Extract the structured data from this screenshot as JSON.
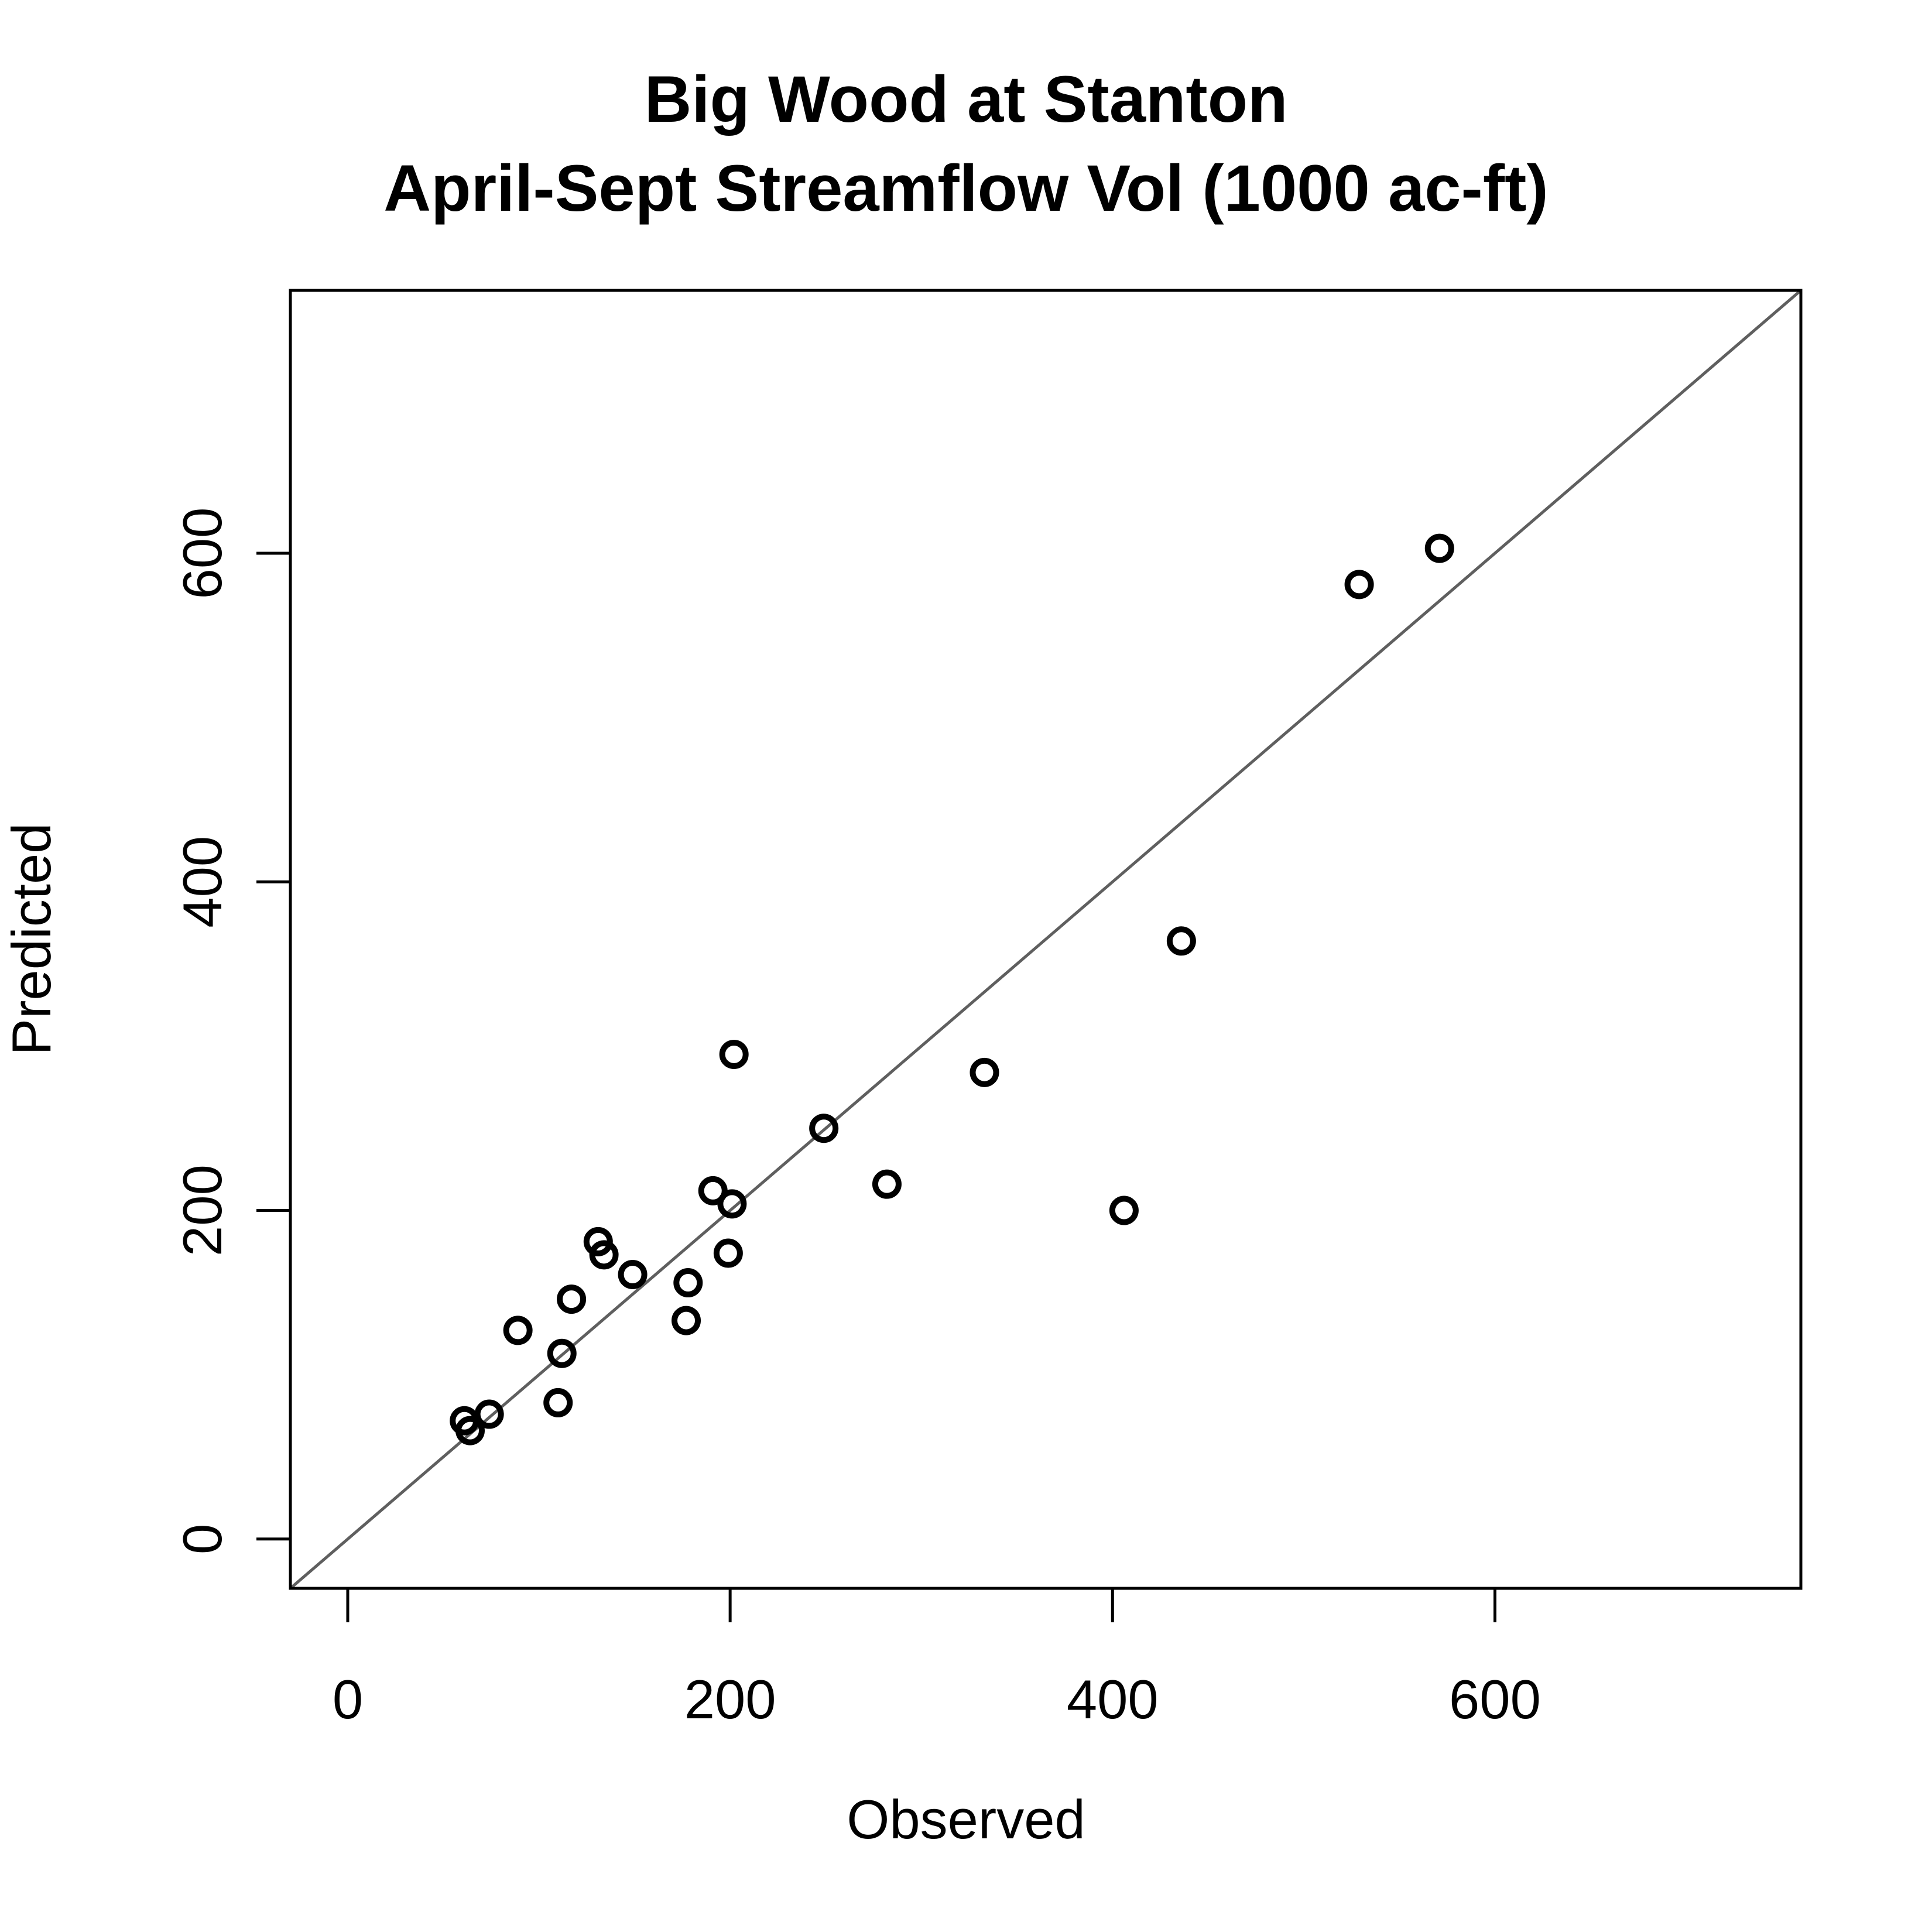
{
  "chart_data": {
    "type": "scatter",
    "title": "Big Wood at Stanton",
    "subtitle": "April-Sept Streamflow Vol (1000 ac-ft)",
    "xlabel": "Observed",
    "ylabel": "Predicted",
    "xlim": [
      -30,
      760
    ],
    "ylim": [
      -30,
      760
    ],
    "x_ticks": [
      0,
      200,
      400,
      600
    ],
    "y_ticks": [
      0,
      200,
      400,
      600
    ],
    "x_tick_labels": [
      "0",
      "200",
      "400",
      "600"
    ],
    "y_tick_labels": [
      "0",
      "200",
      "400",
      "600"
    ],
    "reference_line": {
      "type": "1:1 line",
      "color": "#5f5f5f"
    },
    "grid": false,
    "marker": "open-circle",
    "points": [
      {
        "x": 61,
        "y": 72
      },
      {
        "x": 64,
        "y": 66
      },
      {
        "x": 74,
        "y": 76
      },
      {
        "x": 89,
        "y": 127
      },
      {
        "x": 110,
        "y": 83
      },
      {
        "x": 112,
        "y": 113
      },
      {
        "x": 117,
        "y": 146
      },
      {
        "x": 131,
        "y": 181
      },
      {
        "x": 134,
        "y": 173
      },
      {
        "x": 149,
        "y": 161
      },
      {
        "x": 177,
        "y": 133
      },
      {
        "x": 178,
        "y": 156
      },
      {
        "x": 191,
        "y": 212
      },
      {
        "x": 199,
        "y": 174
      },
      {
        "x": 201,
        "y": 204
      },
      {
        "x": 202,
        "y": 295
      },
      {
        "x": 249,
        "y": 250
      },
      {
        "x": 282,
        "y": 216
      },
      {
        "x": 333,
        "y": 284
      },
      {
        "x": 406,
        "y": 200
      },
      {
        "x": 436,
        "y": 364
      },
      {
        "x": 529,
        "y": 581
      },
      {
        "x": 571,
        "y": 603
      }
    ]
  }
}
